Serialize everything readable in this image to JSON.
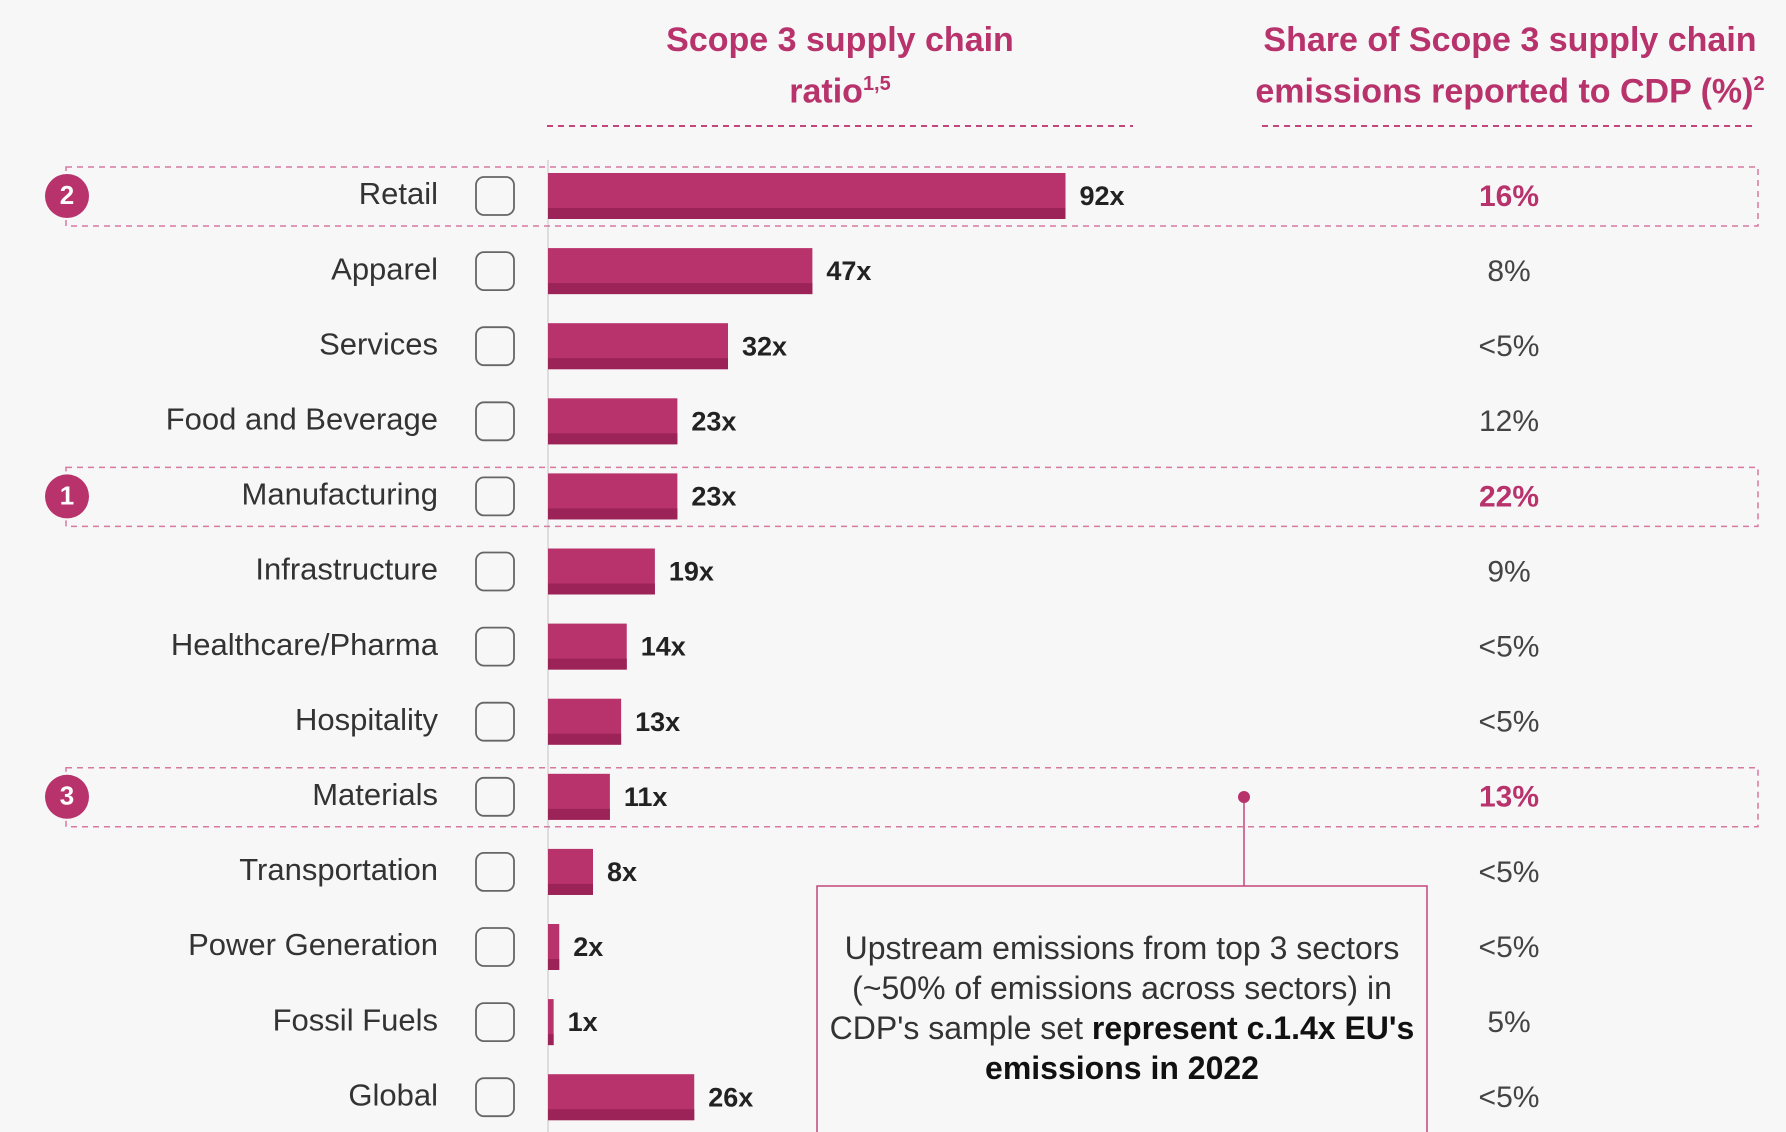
{
  "chart_data": {
    "type": "bar",
    "ratio_heading": "Scope 3 supply chain ratio",
    "ratio_heading_sup": "1,5",
    "share_heading": "Share of Scope 3 supply chain emissions reported to CDP (%)",
    "share_heading_sup": "2",
    "categories": [
      "Retail",
      "Apparel",
      "Services",
      "Food and Beverage",
      "Manufacturing",
      "Infrastructure",
      "Healthcare/Pharma",
      "Hospitality",
      "Materials",
      "Transportation",
      "Power Generation",
      "Fossil Fuels",
      "Global"
    ],
    "values": [
      92,
      47,
      32,
      23,
      23,
      19,
      14,
      13,
      11,
      8,
      2,
      1,
      26
    ],
    "value_labels": [
      "92x",
      "47x",
      "32x",
      "23x",
      "23x",
      "19x",
      "14x",
      "13x",
      "11x",
      "8x",
      "2x",
      "1x",
      "26x"
    ],
    "shares": [
      "16%",
      "8%",
      "<5%",
      "12%",
      "22%",
      "9%",
      "<5%",
      "<5%",
      "13%",
      "<5%",
      "<5%",
      "5%",
      "<5%"
    ],
    "badges": [
      "2",
      null,
      null,
      null,
      "1",
      null,
      null,
      null,
      "3",
      null,
      null,
      null,
      null
    ],
    "color": "#b8326b",
    "xlim": [
      0,
      104
    ],
    "annotation": {
      "text": "Upstream emissions from top 3 sectors (~50% of emissions across sectors) in CDP's sample set",
      "bold": "represent c.1.4x EU's emissions in 2022"
    }
  }
}
